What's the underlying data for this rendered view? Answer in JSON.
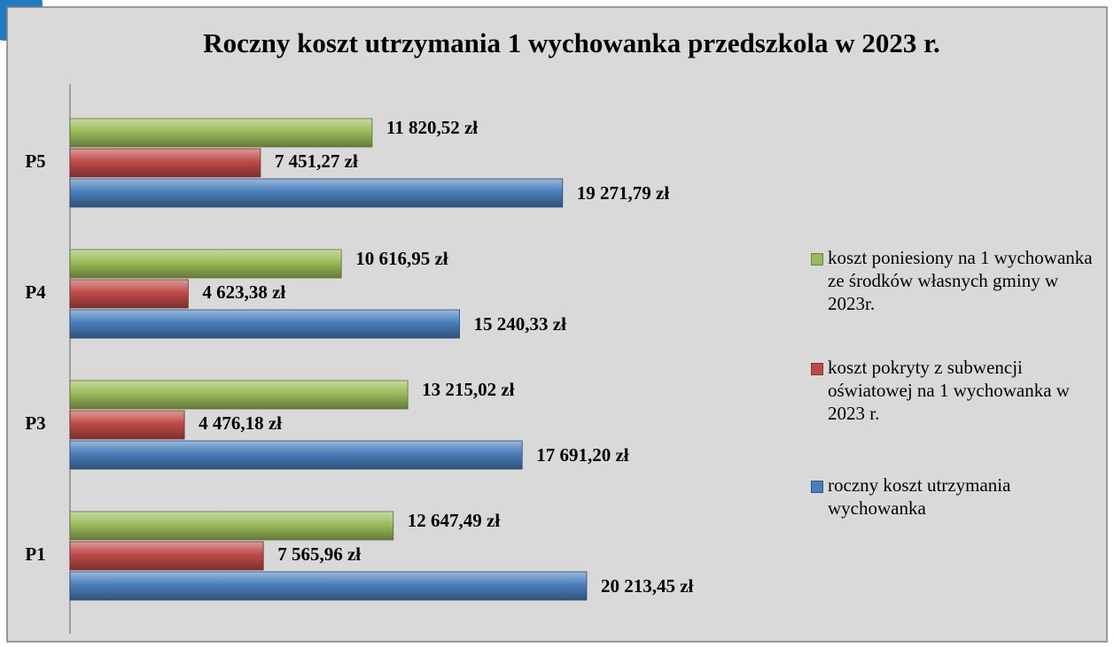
{
  "chart_data": {
    "type": "bar",
    "orientation": "horizontal",
    "title": "Roczny koszt utrzymania 1 wychowanka przedszkola w 2023 r.",
    "categories": [
      "P1",
      "P3",
      "P4",
      "P5"
    ],
    "series": [
      {
        "name": "roczny koszt utrzymania wychowanka",
        "color": "#4a7ebb",
        "values": [
          20213.45,
          17691.2,
          15240.33,
          19271.79
        ],
        "value_labels": [
          "20 213,45 zł",
          "17 691,20 zł",
          "15 240,33 zł",
          "19 271,79 zł"
        ]
      },
      {
        "name": "koszt pokryty z subwencji oświatowej na 1 wychowanka w 2023 r.",
        "color": "#be4b48",
        "values": [
          7565.96,
          4476.18,
          4623.38,
          7451.27
        ],
        "value_labels": [
          "7 565,96 zł",
          "4 476,18 zł",
          "4 623,38 zł",
          "7 451,27 zł"
        ]
      },
      {
        "name": "koszt poniesiony na 1 wychowanka ze środków własnych gminy w 2023r.",
        "color": "#9bbb59",
        "values": [
          12647.49,
          13215.02,
          10616.95,
          11820.52
        ],
        "value_labels": [
          "12 647,49 zł",
          "13 215,02 zł",
          "10 616,95 zł",
          "11 820,52 zł"
        ]
      }
    ],
    "xlim": [
      0,
      25000
    ],
    "legend": "right"
  }
}
